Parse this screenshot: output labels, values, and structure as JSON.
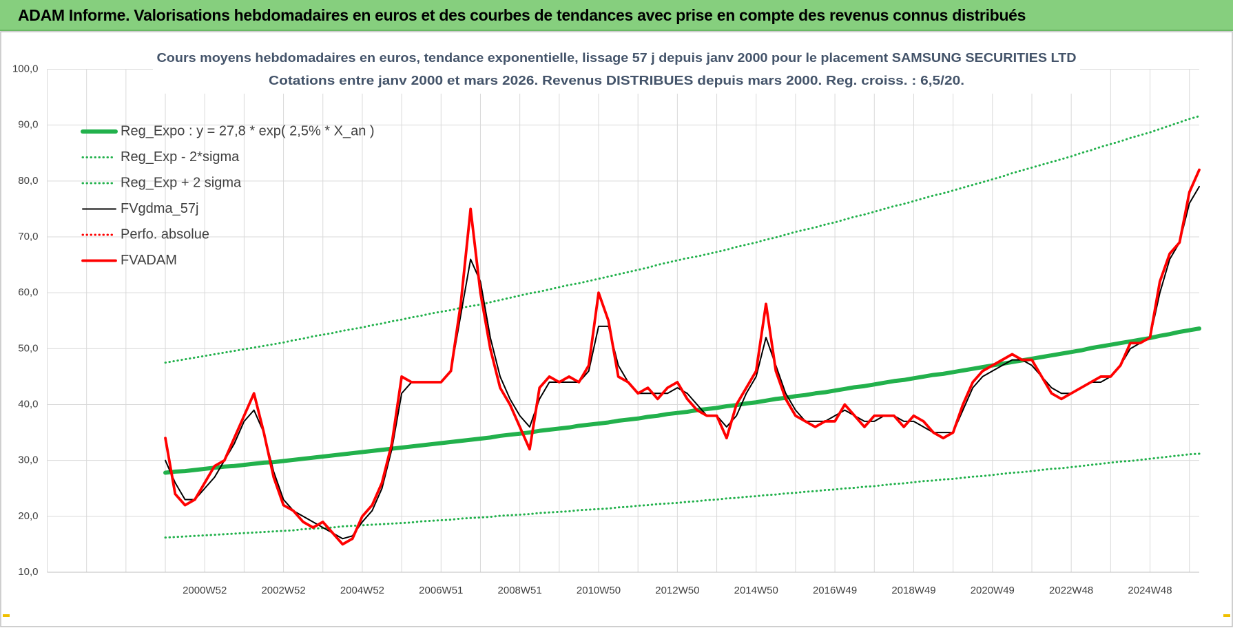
{
  "header": {
    "title": "ADAM Informe. Valorisations hebdomadaires en euros et des courbes de tendances avec prise en compte des revenus connus distribués"
  },
  "chart_data": {
    "type": "line",
    "title": "Cours moyens hebdomadaires en euros, tendance exponentielle, lissage 57 j depuis janv 2000 pour le placement SAMSUNG SECURITIES LTD",
    "subtitle": "Cotations entre janv 2000 et mars 2026. Revenus DISTRIBUES depuis mars 2000. Reg. croiss. : 6,5/20.",
    "categories": [
      null,
      null,
      null,
      null,
      null,
      null,
      null,
      null,
      null,
      null,
      null,
      null,
      null,
      null,
      null,
      null,
      "2000W52",
      null,
      null,
      null,
      null,
      null,
      null,
      null,
      "2002W52",
      null,
      null,
      null,
      null,
      null,
      null,
      null,
      "2004W52",
      null,
      null,
      null,
      null,
      null,
      null,
      null,
      "2006W51",
      null,
      null,
      null,
      null,
      null,
      null,
      null,
      "2008W51",
      null,
      null,
      null,
      null,
      null,
      null,
      null,
      "2010W50",
      null,
      null,
      null,
      null,
      null,
      null,
      null,
      "2012W50",
      null,
      null,
      null,
      null,
      null,
      null,
      null,
      "2014W50",
      null,
      null,
      null,
      null,
      null,
      null,
      null,
      "2016W49",
      null,
      null,
      null,
      null,
      null,
      null,
      null,
      "2018W49",
      null,
      null,
      null,
      null,
      null,
      null,
      null,
      "2020W49",
      null,
      null,
      null,
      null,
      null,
      null,
      null,
      "2022W48",
      null,
      null,
      null,
      null,
      null,
      null,
      null,
      "2024W48",
      null,
      null,
      null,
      null,
      null
    ],
    "ylim": [
      10,
      100
    ],
    "yticks": [
      {
        "value": 10,
        "label": "10,0"
      },
      {
        "value": 20,
        "label": "20,0"
      },
      {
        "value": 30,
        "label": "30,0"
      },
      {
        "value": 40,
        "label": "40,0"
      },
      {
        "value": 50,
        "label": "50,0"
      },
      {
        "value": 60,
        "label": "60,0"
      },
      {
        "value": 70,
        "label": "70,0"
      },
      {
        "value": 80,
        "label": "80,0"
      },
      {
        "value": 90,
        "label": "90,0"
      },
      {
        "value": 100,
        "label": "100,0"
      }
    ],
    "grid": true,
    "legend": "top-left",
    "series": [
      {
        "name": "Reg_Expo : y = 27,8 * exp( 2,5% *  X_an )",
        "color": "#22b14c",
        "style": "thick",
        "values": [
          null,
          null,
          null,
          null,
          null,
          null,
          null,
          null,
          null,
          null,
          null,
          null,
          27.8,
          28.0,
          28.1,
          28.3,
          28.5,
          28.7,
          28.9,
          29.0,
          29.2,
          29.4,
          29.6,
          29.7,
          29.9,
          30.1,
          30.3,
          30.5,
          30.7,
          30.9,
          31.1,
          31.3,
          31.5,
          31.7,
          31.9,
          32.1,
          32.3,
          32.5,
          32.7,
          32.9,
          33.1,
          33.3,
          33.5,
          33.7,
          33.9,
          34.1,
          34.4,
          34.6,
          34.8,
          35.0,
          35.3,
          35.5,
          35.7,
          35.9,
          36.2,
          36.4,
          36.6,
          36.8,
          37.1,
          37.3,
          37.5,
          37.8,
          38.0,
          38.3,
          38.5,
          38.7,
          39.0,
          39.2,
          39.4,
          39.7,
          39.9,
          40.2,
          40.4,
          40.7,
          41.0,
          41.2,
          41.5,
          41.7,
          42.0,
          42.2,
          42.5,
          42.8,
          43.1,
          43.3,
          43.6,
          43.9,
          44.2,
          44.4,
          44.7,
          45.0,
          45.3,
          45.5,
          45.8,
          46.1,
          46.4,
          46.7,
          47.0,
          47.3,
          47.6,
          47.9,
          48.2,
          48.5,
          48.8,
          49.1,
          49.4,
          49.7,
          50.1,
          50.4,
          50.7,
          51.0,
          51.3,
          51.6,
          51.9,
          52.3,
          52.6,
          53.0,
          53.3,
          53.6
        ]
      },
      {
        "name": "Reg_Exp - 2*sigma",
        "color": "#22b14c",
        "style": "dotted",
        "values": [
          null,
          null,
          null,
          null,
          null,
          null,
          null,
          null,
          null,
          null,
          null,
          null,
          16.2,
          16.3,
          16.4,
          16.5,
          16.6,
          16.7,
          16.8,
          16.9,
          17.0,
          17.1,
          17.2,
          17.3,
          17.4,
          17.5,
          17.7,
          17.8,
          17.9,
          18.0,
          18.2,
          18.3,
          18.4,
          18.5,
          18.6,
          18.7,
          18.8,
          18.9,
          19.1,
          19.2,
          19.3,
          19.4,
          19.6,
          19.7,
          19.8,
          19.9,
          20.1,
          20.2,
          20.3,
          20.4,
          20.6,
          20.7,
          20.8,
          20.9,
          21.1,
          21.2,
          21.3,
          21.4,
          21.6,
          21.7,
          21.9,
          22.0,
          22.2,
          22.3,
          22.4,
          22.6,
          22.7,
          22.9,
          23.0,
          23.2,
          23.3,
          23.5,
          23.6,
          23.8,
          23.9,
          24.1,
          24.2,
          24.4,
          24.5,
          24.7,
          24.8,
          25.0,
          25.1,
          25.3,
          25.4,
          25.6,
          25.8,
          25.9,
          26.1,
          26.3,
          26.4,
          26.6,
          26.7,
          26.9,
          27.1,
          27.2,
          27.4,
          27.6,
          27.8,
          27.9,
          28.1,
          28.3,
          28.5,
          28.6,
          28.8,
          29.0,
          29.2,
          29.4,
          29.6,
          29.8,
          29.9,
          30.1,
          30.3,
          30.5,
          30.7,
          30.9,
          31.1,
          31.2
        ]
      },
      {
        "name": "Reg_Exp + 2 sigma",
        "color": "#22b14c",
        "style": "dotted",
        "values": [
          null,
          null,
          null,
          null,
          null,
          null,
          null,
          null,
          null,
          null,
          null,
          null,
          47.5,
          47.8,
          48.1,
          48.4,
          48.7,
          49.0,
          49.3,
          49.6,
          49.9,
          50.2,
          50.5,
          50.8,
          51.1,
          51.5,
          51.8,
          52.2,
          52.5,
          52.8,
          53.2,
          53.5,
          53.8,
          54.2,
          54.5,
          54.9,
          55.2,
          55.6,
          55.9,
          56.3,
          56.6,
          56.9,
          57.3,
          57.6,
          57.9,
          58.3,
          58.7,
          59.1,
          59.5,
          59.9,
          60.2,
          60.6,
          61.0,
          61.4,
          61.7,
          62.1,
          62.5,
          62.9,
          63.3,
          63.7,
          64.1,
          64.5,
          65.0,
          65.4,
          65.8,
          66.2,
          66.5,
          66.9,
          67.3,
          67.7,
          68.2,
          68.6,
          69.0,
          69.5,
          69.9,
          70.4,
          70.9,
          71.3,
          71.7,
          72.2,
          72.6,
          73.1,
          73.6,
          74.0,
          74.5,
          75.0,
          75.5,
          75.9,
          76.4,
          76.9,
          77.4,
          77.8,
          78.3,
          78.8,
          79.3,
          79.8,
          80.3,
          80.8,
          81.4,
          81.9,
          82.4,
          82.9,
          83.4,
          83.9,
          84.4,
          85.0,
          85.5,
          86.1,
          86.6,
          87.1,
          87.7,
          88.2,
          88.7,
          89.3,
          89.9,
          90.5,
          91.1,
          91.6
        ]
      },
      {
        "name": "FVgdma_57j",
        "color": "#000000",
        "style": "solid",
        "values": [
          null,
          null,
          null,
          null,
          null,
          null,
          null,
          null,
          null,
          null,
          null,
          null,
          30,
          26,
          23,
          23,
          25,
          27,
          30,
          33,
          37,
          39,
          35,
          28,
          23,
          21,
          20,
          19,
          18,
          17,
          16,
          16.5,
          19,
          21,
          25,
          32,
          42,
          44,
          44,
          44,
          44,
          46,
          56,
          66,
          62,
          52,
          45,
          41,
          38,
          36,
          41,
          44,
          44,
          44,
          44,
          46,
          54,
          54,
          47,
          44,
          42,
          42,
          42,
          42,
          43,
          42,
          40,
          38,
          38,
          36,
          38,
          42,
          45,
          52,
          47,
          42,
          39,
          37,
          37,
          37,
          38,
          39,
          38,
          37,
          37,
          38,
          38,
          37,
          37,
          36,
          35,
          35,
          35,
          39,
          43,
          45,
          46,
          47,
          48,
          48,
          47,
          45,
          43,
          42,
          42,
          43,
          44,
          44,
          45,
          47,
          50,
          51,
          52,
          60,
          66,
          69,
          76,
          79
        ]
      },
      {
        "name": "Perfo. absolue",
        "color": "#ff0000",
        "style": "dotted",
        "values": [
          null,
          null,
          null,
          null,
          null,
          null,
          null,
          null,
          null,
          null,
          null,
          null,
          34,
          24,
          22,
          23,
          26,
          29,
          30,
          34,
          38,
          42,
          35,
          27,
          22,
          21,
          19,
          18,
          19,
          17,
          15,
          16,
          20,
          22,
          26,
          33,
          45,
          44,
          44,
          44,
          44,
          46,
          58,
          75,
          60,
          50,
          43,
          40,
          36,
          32,
          43,
          45,
          44,
          45,
          44,
          47,
          60,
          55,
          45,
          44,
          42,
          43,
          41,
          43,
          44,
          41,
          39,
          38,
          38,
          34,
          40,
          43,
          46,
          58,
          46,
          41,
          38,
          37,
          36,
          37,
          37,
          40,
          38,
          36,
          38,
          38,
          38,
          36,
          38,
          37,
          35,
          34,
          35,
          40,
          44,
          46,
          47,
          48,
          49,
          48,
          48,
          45,
          42,
          41,
          42,
          43,
          44,
          45,
          45,
          47,
          51,
          51,
          52,
          62,
          67,
          69,
          78,
          82
        ]
      },
      {
        "name": "FVADAM",
        "color": "#ff0000",
        "style": "bold",
        "values": [
          null,
          null,
          null,
          null,
          null,
          null,
          null,
          null,
          null,
          null,
          null,
          null,
          34,
          24,
          22,
          23,
          26,
          29,
          30,
          34,
          38,
          42,
          35,
          27,
          22,
          21,
          19,
          18,
          19,
          17,
          15,
          16,
          20,
          22,
          26,
          33,
          45,
          44,
          44,
          44,
          44,
          46,
          58,
          75,
          60,
          50,
          43,
          40,
          36,
          32,
          43,
          45,
          44,
          45,
          44,
          47,
          60,
          55,
          45,
          44,
          42,
          43,
          41,
          43,
          44,
          41,
          39,
          38,
          38,
          34,
          40,
          43,
          46,
          58,
          46,
          41,
          38,
          37,
          36,
          37,
          37,
          40,
          38,
          36,
          38,
          38,
          38,
          36,
          38,
          37,
          35,
          34,
          35,
          40,
          44,
          46,
          47,
          48,
          49,
          48,
          48,
          45,
          42,
          41,
          42,
          43,
          44,
          45,
          45,
          47,
          51,
          51,
          52,
          62,
          67,
          69,
          78,
          82
        ]
      }
    ]
  }
}
